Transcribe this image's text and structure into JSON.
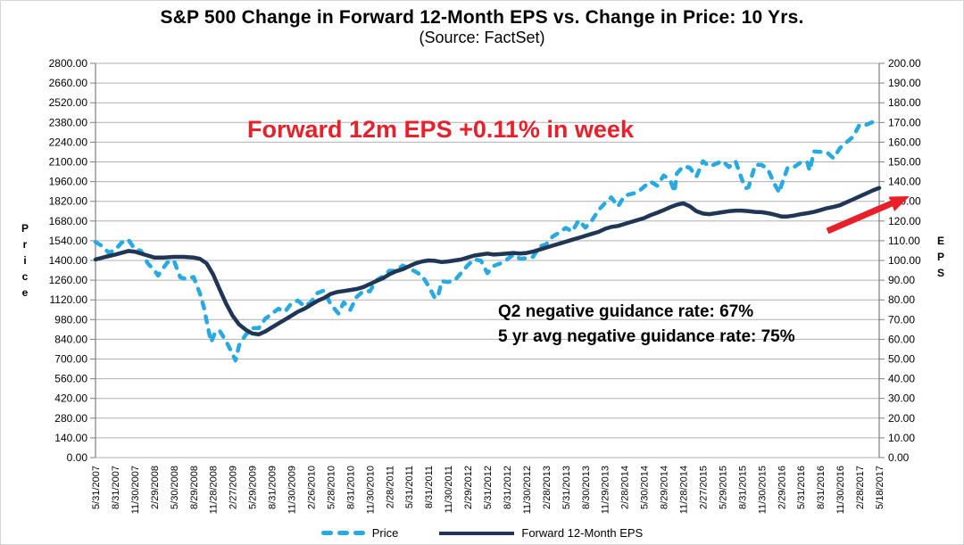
{
  "title": "S&P 500 Change in Forward 12-Month EPS vs. Change in Price: 10 Yrs.",
  "subtitle": "(Source: FactSet)",
  "annotations": {
    "eps_week_note": "Forward 12m EPS +0.11% in week",
    "guidance_q2": "Q2 negative guidance rate: 67%",
    "guidance_5yr": "5 yr avg negative guidance rate: 75%"
  },
  "legend": {
    "items": [
      {
        "label": "Price"
      },
      {
        "label": "Forward 12-Month EPS"
      }
    ]
  },
  "colors": {
    "price": "#27a9e1",
    "eps": "#1f3656",
    "red": "#e8202a",
    "grid": "#b0b0b0",
    "axis": "#7f7f7f"
  },
  "chart_data": {
    "type": "line",
    "grid": "horizontal",
    "legend_position": "bottom",
    "left_axis": {
      "title": "Price",
      "min": 0,
      "max": 2800,
      "step": 140,
      "tick_format": "0.00"
    },
    "right_axis": {
      "title": "EPS",
      "min": 0,
      "max": 200,
      "step": 10,
      "tick_format": "0.00"
    },
    "x_labels": [
      "5/31/2007",
      "8/31/2007",
      "11/30/2007",
      "2/29/2008",
      "5/30/2008",
      "8/29/2008",
      "11/28/2008",
      "2/27/2009",
      "5/29/2009",
      "8/31/2009",
      "11/30/2009",
      "2/26/2010",
      "5/28/2010",
      "8/31/2010",
      "11/30/2010",
      "2/28/2011",
      "5/31/2011",
      "8/31/2011",
      "11/30/2011",
      "2/29/2012",
      "5/31/2012",
      "8/31/2012",
      "11/30/2012",
      "2/28/2013",
      "5/31/2013",
      "8/30/2013",
      "11/29/2013",
      "2/28/2014",
      "5/30/2014",
      "8/29/2014",
      "11/28/2014",
      "2/27/2015",
      "5/29/2015",
      "8/31/2015",
      "11/30/2015",
      "2/29/2016",
      "5/31/2016",
      "8/31/2016",
      "11/30/2016",
      "2/28/2017",
      "5/18/2017"
    ],
    "series": [
      {
        "name": "Price",
        "axis": "left",
        "style": "dashed",
        "data_name": "price-series-line",
        "points": [
          [
            0,
            1531
          ],
          [
            0.33,
            1503
          ],
          [
            0.67,
            1455
          ],
          [
            1,
            1474
          ],
          [
            1.33,
            1527
          ],
          [
            1.67,
            1549
          ],
          [
            2,
            1481
          ],
          [
            2.33,
            1468
          ],
          [
            2.67,
            1379
          ],
          [
            3,
            1331
          ],
          [
            3.2,
            1293
          ],
          [
            3.33,
            1323
          ],
          [
            3.67,
            1386
          ],
          [
            4,
            1400
          ],
          [
            4.33,
            1280
          ],
          [
            4.67,
            1267
          ],
          [
            5,
            1283
          ],
          [
            5.33,
            1166
          ],
          [
            5.55,
            1057
          ],
          [
            5.67,
            969
          ],
          [
            5.9,
            820
          ],
          [
            6.1,
            887
          ],
          [
            6.33,
            903
          ],
          [
            6.67,
            826
          ],
          [
            7,
            735
          ],
          [
            7.15,
            690
          ],
          [
            7.33,
            798
          ],
          [
            7.67,
            873
          ],
          [
            8,
            919
          ],
          [
            8.33,
            919
          ],
          [
            8.67,
            987
          ],
          [
            9,
            1021
          ],
          [
            9.33,
            1057
          ],
          [
            9.67,
            1036
          ],
          [
            10,
            1096
          ],
          [
            10.33,
            1115
          ],
          [
            10.67,
            1074
          ],
          [
            11,
            1104
          ],
          [
            11.33,
            1169
          ],
          [
            11.67,
            1187
          ],
          [
            12,
            1089
          ],
          [
            12.4,
            1023
          ],
          [
            12.67,
            1102
          ],
          [
            13,
            1049
          ],
          [
            13.33,
            1141
          ],
          [
            13.67,
            1183
          ],
          [
            14,
            1181
          ],
          [
            14.33,
            1258
          ],
          [
            14.67,
            1286
          ],
          [
            15,
            1327
          ],
          [
            15.33,
            1326
          ],
          [
            15.67,
            1364
          ],
          [
            16,
            1345
          ],
          [
            16.33,
            1321
          ],
          [
            16.67,
            1292
          ],
          [
            17,
            1219
          ],
          [
            17.33,
            1131
          ],
          [
            17.5,
            1155
          ],
          [
            17.67,
            1253
          ],
          [
            18,
            1247
          ],
          [
            18.33,
            1258
          ],
          [
            18.67,
            1312
          ],
          [
            19,
            1366
          ],
          [
            19.33,
            1408
          ],
          [
            19.67,
            1398
          ],
          [
            20,
            1310
          ],
          [
            20.33,
            1362
          ],
          [
            20.67,
            1379
          ],
          [
            21,
            1407
          ],
          [
            21.33,
            1441
          ],
          [
            21.67,
            1412
          ],
          [
            22,
            1416
          ],
          [
            22.33,
            1426
          ],
          [
            22.67,
            1498
          ],
          [
            23,
            1515
          ],
          [
            23.33,
            1569
          ],
          [
            23.67,
            1598
          ],
          [
            24,
            1631
          ],
          [
            24.33,
            1606
          ],
          [
            24.67,
            1686
          ],
          [
            25,
            1633
          ],
          [
            25.33,
            1682
          ],
          [
            25.67,
            1757
          ],
          [
            26,
            1806
          ],
          [
            26.33,
            1848
          ],
          [
            26.67,
            1783
          ],
          [
            27,
            1859
          ],
          [
            27.33,
            1872
          ],
          [
            27.67,
            1884
          ],
          [
            28,
            1924
          ],
          [
            28.33,
            1960
          ],
          [
            28.67,
            1931
          ],
          [
            29,
            2003
          ],
          [
            29.33,
            1972
          ],
          [
            29.55,
            1886
          ],
          [
            29.67,
            2018
          ],
          [
            30,
            2068
          ],
          [
            30.33,
            2059
          ],
          [
            30.67,
            1995
          ],
          [
            31,
            2105
          ],
          [
            31.33,
            2068
          ],
          [
            31.67,
            2086
          ],
          [
            32,
            2107
          ],
          [
            32.33,
            2063
          ],
          [
            32.67,
            2104
          ],
          [
            33,
            1972
          ],
          [
            33.2,
            1913
          ],
          [
            33.33,
            1920
          ],
          [
            33.67,
            2079
          ],
          [
            34,
            2080
          ],
          [
            34.33,
            2044
          ],
          [
            34.67,
            1940
          ],
          [
            34.9,
            1880
          ],
          [
            35,
            1932
          ],
          [
            35.33,
            2060
          ],
          [
            35.67,
            2065
          ],
          [
            36,
            2097
          ],
          [
            36.33,
            2099
          ],
          [
            36.45,
            2037
          ],
          [
            36.67,
            2174
          ],
          [
            37,
            2171
          ],
          [
            37.33,
            2168
          ],
          [
            37.67,
            2126
          ],
          [
            38,
            2199
          ],
          [
            38.33,
            2239
          ],
          [
            38.67,
            2279
          ],
          [
            39,
            2364
          ],
          [
            39.33,
            2363
          ],
          [
            39.67,
            2384
          ],
          [
            40,
            2366
          ]
        ]
      },
      {
        "name": "Forward 12-Month EPS",
        "axis": "right",
        "style": "solid",
        "data_name": "eps-series-line",
        "points": [
          [
            0,
            100.5
          ],
          [
            0.5,
            101.8
          ],
          [
            1,
            103
          ],
          [
            1.67,
            104.8
          ],
          [
            2,
            104.5
          ],
          [
            2.67,
            102.5
          ],
          [
            3,
            101.5
          ],
          [
            3.5,
            101.5
          ],
          [
            4,
            101.8
          ],
          [
            4.5,
            101.8
          ],
          [
            5,
            101.5
          ],
          [
            5.33,
            100.8
          ],
          [
            5.67,
            98.5
          ],
          [
            6,
            93
          ],
          [
            6.33,
            85.5
          ],
          [
            6.67,
            78
          ],
          [
            7,
            72
          ],
          [
            7.33,
            67.5
          ],
          [
            7.67,
            64.8
          ],
          [
            8,
            63
          ],
          [
            8.33,
            62.5
          ],
          [
            8.67,
            64
          ],
          [
            9,
            66
          ],
          [
            9.33,
            68
          ],
          [
            9.67,
            70
          ],
          [
            10,
            72
          ],
          [
            10.33,
            74
          ],
          [
            10.67,
            75.5
          ],
          [
            11,
            77.5
          ],
          [
            11.33,
            79.5
          ],
          [
            11.67,
            81
          ],
          [
            12,
            83
          ],
          [
            12.33,
            84
          ],
          [
            12.67,
            84.5
          ],
          [
            13,
            85
          ],
          [
            13.33,
            85.5
          ],
          [
            13.67,
            86.5
          ],
          [
            14,
            88
          ],
          [
            14.33,
            89.5
          ],
          [
            14.67,
            91
          ],
          [
            15,
            93
          ],
          [
            15.33,
            94.5
          ],
          [
            15.67,
            95.5
          ],
          [
            16,
            97
          ],
          [
            16.33,
            98.5
          ],
          [
            16.67,
            99.5
          ],
          [
            17,
            100
          ],
          [
            17.33,
            99.8
          ],
          [
            17.67,
            99.2
          ],
          [
            18,
            99.5
          ],
          [
            18.33,
            100
          ],
          [
            18.67,
            100.5
          ],
          [
            19,
            101.5
          ],
          [
            19.33,
            102.5
          ],
          [
            19.67,
            103
          ],
          [
            20,
            103.5
          ],
          [
            20.33,
            103
          ],
          [
            20.67,
            103.2
          ],
          [
            21,
            103.5
          ],
          [
            21.33,
            103.8
          ],
          [
            21.67,
            103.5
          ],
          [
            22,
            103.8
          ],
          [
            22.33,
            104.5
          ],
          [
            22.67,
            105.5
          ],
          [
            23,
            106.5
          ],
          [
            23.33,
            107.5
          ],
          [
            23.67,
            108.5
          ],
          [
            24,
            109.5
          ],
          [
            24.33,
            110.5
          ],
          [
            24.67,
            111.5
          ],
          [
            25,
            112.5
          ],
          [
            25.33,
            113.5
          ],
          [
            25.67,
            114.5
          ],
          [
            26,
            116
          ],
          [
            26.33,
            117
          ],
          [
            26.67,
            117.5
          ],
          [
            27,
            118.5
          ],
          [
            27.33,
            119.5
          ],
          [
            27.67,
            120.5
          ],
          [
            28,
            121.5
          ],
          [
            28.33,
            123
          ],
          [
            28.67,
            124.2
          ],
          [
            29,
            125.5
          ],
          [
            29.33,
            127
          ],
          [
            29.67,
            128.3
          ],
          [
            30,
            129
          ],
          [
            30.33,
            127.5
          ],
          [
            30.67,
            125
          ],
          [
            31,
            123.8
          ],
          [
            31.33,
            123.5
          ],
          [
            31.67,
            124
          ],
          [
            32,
            124.5
          ],
          [
            32.33,
            125
          ],
          [
            32.67,
            125.3
          ],
          [
            33,
            125.3
          ],
          [
            33.33,
            125
          ],
          [
            33.67,
            124.6
          ],
          [
            34,
            124.5
          ],
          [
            34.33,
            124
          ],
          [
            34.67,
            123.2
          ],
          [
            35,
            122.3
          ],
          [
            35.33,
            122.3
          ],
          [
            35.67,
            122.8
          ],
          [
            36,
            123.5
          ],
          [
            36.33,
            124
          ],
          [
            36.67,
            124.6
          ],
          [
            37,
            125.5
          ],
          [
            37.33,
            126.5
          ],
          [
            37.67,
            127.2
          ],
          [
            38,
            128
          ],
          [
            38.33,
            129.5
          ],
          [
            38.67,
            131
          ],
          [
            39,
            132.5
          ],
          [
            39.33,
            134
          ],
          [
            39.67,
            135.5
          ],
          [
            40,
            136.8
          ]
        ]
      }
    ]
  }
}
